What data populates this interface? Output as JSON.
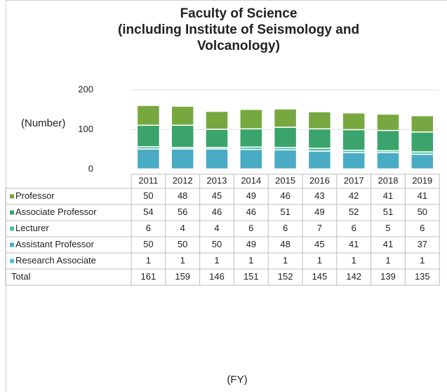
{
  "chart_data": {
    "type": "stacked_bar",
    "title": [
      "Faculty of Science",
      "(including Institute of Seismology and",
      "Volcanology)"
    ],
    "y_label": "(Number)",
    "x_label": "(FY)",
    "categories": [
      "2011",
      "2012",
      "2013",
      "2014",
      "2015",
      "2016",
      "2017",
      "2018",
      "2019"
    ],
    "series": [
      {
        "name": "Professor",
        "color": "#77a83f",
        "values": [
          50,
          48,
          45,
          49,
          46,
          43,
          42,
          41,
          41
        ]
      },
      {
        "name": "Associate Professor",
        "color": "#3ba36c",
        "values": [
          54,
          56,
          46,
          46,
          51,
          49,
          52,
          51,
          50
        ]
      },
      {
        "name": "Lecturer",
        "color": "#4cc3a2",
        "values": [
          6,
          4,
          4,
          6,
          6,
          7,
          6,
          5,
          6
        ]
      },
      {
        "name": "Assistant Professor",
        "color": "#4aabc4",
        "values": [
          50,
          50,
          50,
          49,
          48,
          45,
          41,
          41,
          37
        ]
      },
      {
        "name": "Research Associate",
        "color": "#5bb8da",
        "values": [
          1,
          1,
          1,
          1,
          1,
          1,
          1,
          1,
          1
        ]
      }
    ],
    "total": {
      "name": "Total",
      "values": [
        161,
        159,
        146,
        151,
        152,
        145,
        142,
        139,
        135
      ]
    },
    "ylim": [
      0,
      200
    ],
    "yticks": [
      0,
      100,
      200
    ],
    "grid": true
  }
}
